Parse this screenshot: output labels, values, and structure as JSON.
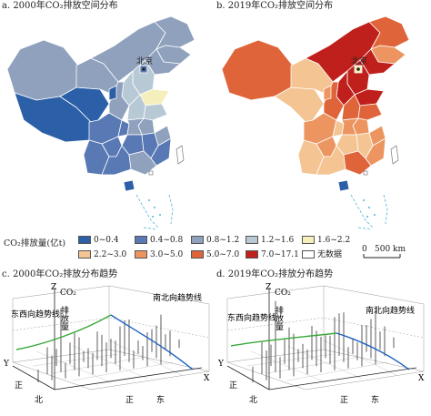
{
  "panels": {
    "a": {
      "title": "a. 2000年CO₂排放空间分布",
      "beijing": "北京"
    },
    "b": {
      "title": "b. 2019年CO₂排放空间分布",
      "beijing": "北京"
    },
    "c": {
      "title": "c. 2000年CO₂排放分布趋势"
    },
    "d": {
      "title": "d. 2019年CO₂排放分布趋势"
    }
  },
  "legend": {
    "title": "CO₂排放量(亿t)",
    "items": [
      {
        "label": "0~0.4",
        "color": "#2b5fa8"
      },
      {
        "label": "0.4~0.8",
        "color": "#5879b4"
      },
      {
        "label": "0.8~1.2",
        "color": "#8fa1bd"
      },
      {
        "label": "1.2~1.6",
        "color": "#b8c9d6"
      },
      {
        "label": "1.6~2.2",
        "color": "#f5f0bb"
      },
      {
        "label": "2.2~3.0",
        "color": "#f4c493"
      },
      {
        "label": "3.0~5.0",
        "color": "#ec9560"
      },
      {
        "label": "5.0~7.0",
        "color": "#e0643a"
      },
      {
        "label": "7.0~17.1",
        "color": "#c0201c"
      },
      {
        "label": "无数据",
        "color": "#ffffff"
      }
    ]
  },
  "scale_bar": {
    "zero": "0",
    "label": "500 km"
  },
  "trend_labels": {
    "z": "Z",
    "y": "Y",
    "x": "X",
    "co2": "CO₂",
    "emission": "排放量",
    "ew_line": "东西向趋势线",
    "ns_line": "南北向趋势线",
    "north": "北",
    "south": "正",
    "east": "东",
    "west": "正"
  },
  "chart_data": [
    {
      "type": "map",
      "title": "a. 2000年CO₂排放空间分布",
      "legend_title": "CO₂排放量(亿t)",
      "classes": [
        "0~0.4",
        "0.4~0.8",
        "0.8~1.2",
        "1.2~1.6",
        "1.6~2.2",
        "2.2~3.0",
        "3.0~5.0",
        "5.0~7.0",
        "7.0~17.1",
        "无数据"
      ]
    },
    {
      "type": "map",
      "title": "b. 2019年CO₂排放空间分布",
      "legend_title": "CO₂排放量(亿t)",
      "classes": [
        "0~0.4",
        "0.4~0.8",
        "0.8~1.2",
        "1.2~1.6",
        "1.6~2.2",
        "2.2~3.0",
        "3.0~5.0",
        "5.0~7.0",
        "7.0~17.1",
        "无数据"
      ]
    },
    {
      "type": "3d-trend",
      "title": "c. 2000年CO₂排放分布趋势",
      "series": [
        {
          "name": "东西向趋势线",
          "color": "#3aa83a"
        },
        {
          "name": "南北向趋势线",
          "color": "#2060c0"
        }
      ],
      "stem_heights": [
        0.18,
        0.35,
        0.22,
        0.55,
        0.3,
        0.42,
        0.62,
        0.25,
        0.48,
        0.7,
        0.38,
        0.9,
        0.52,
        0.28,
        0.44,
        0.33,
        0.6,
        0.2,
        0.46,
        0.36,
        0.24,
        0.3,
        0.15,
        0.4,
        0.27,
        0.5,
        0.19,
        0.32,
        0.22,
        0.12
      ]
    },
    {
      "type": "3d-trend",
      "title": "d. 2019年CO₂排放分布趋势",
      "series": [
        {
          "name": "东西向趋势线",
          "color": "#3aa83a"
        },
        {
          "name": "南北向趋势线",
          "color": "#2060c0"
        }
      ],
      "stem_heights": [
        0.22,
        0.42,
        0.3,
        0.6,
        0.35,
        0.5,
        0.75,
        0.3,
        0.58,
        0.82,
        0.45,
        1.0,
        0.6,
        0.34,
        0.5,
        0.4,
        0.7,
        0.25,
        0.55,
        0.42,
        0.3,
        0.36,
        0.18,
        0.48,
        0.32,
        0.6,
        0.22,
        0.38,
        0.26,
        0.15
      ]
    }
  ]
}
